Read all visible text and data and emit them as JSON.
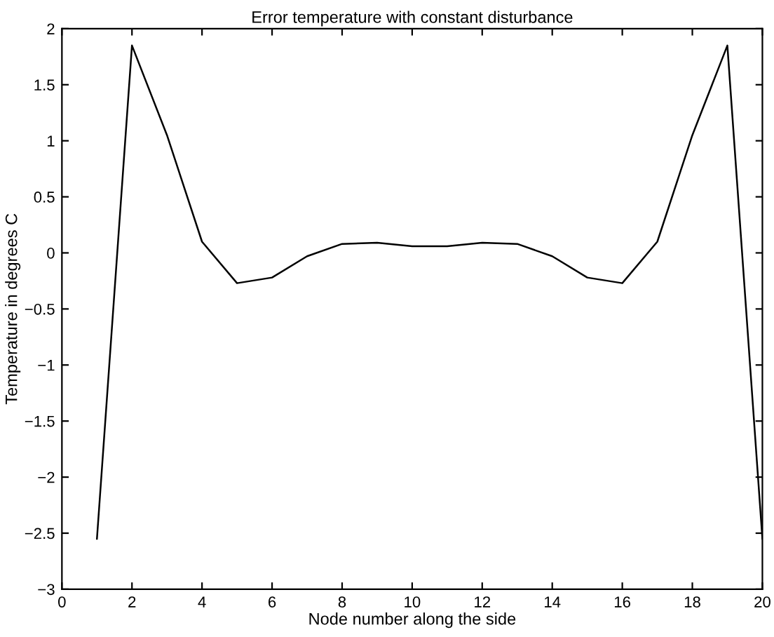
{
  "chart_data": {
    "type": "line",
    "title": "Error temperature with constant disturbance",
    "xlabel": "Node number along the side",
    "ylabel": "Temperature in degrees C",
    "x": [
      1,
      2,
      3,
      4,
      5,
      6,
      7,
      8,
      9,
      10,
      11,
      12,
      13,
      14,
      15,
      16,
      17,
      18,
      19,
      20
    ],
    "series": [
      {
        "color": "#000000",
        "values": [
          -2.55,
          1.85,
          1.05,
          0.1,
          -0.27,
          -0.22,
          -0.03,
          0.08,
          0.09,
          0.06,
          0.06,
          0.09,
          0.08,
          -0.03,
          -0.22,
          -0.27,
          0.1,
          1.05,
          1.85,
          -2.55
        ]
      }
    ],
    "xlim": [
      0,
      20
    ],
    "xticks": [
      0,
      2,
      4,
      6,
      8,
      10,
      12,
      14,
      16,
      18,
      20
    ],
    "ylim": [
      -3,
      2
    ],
    "yticks": [
      {
        "value": -3,
        "label": "−3"
      },
      {
        "value": -2.5,
        "label": "−2.5"
      },
      {
        "value": -2,
        "label": "−2"
      },
      {
        "value": -1.5,
        "label": "−1.5"
      },
      {
        "value": -1,
        "label": "−1"
      },
      {
        "value": -0.5,
        "label": "−0.5"
      },
      0,
      0.5,
      1,
      1.5,
      2
    ],
    "grid": false,
    "legend": false,
    "marker": "none",
    "line_style": "solid"
  }
}
